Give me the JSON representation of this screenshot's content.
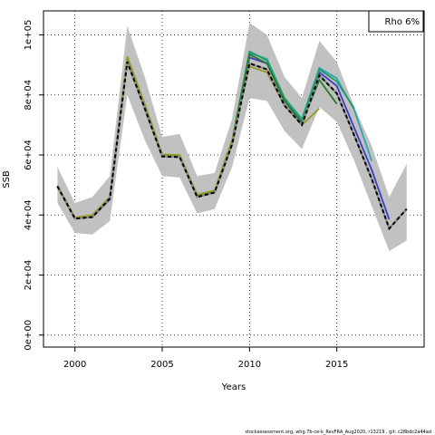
{
  "chart_data": {
    "type": "line",
    "xlabel": "Years",
    "ylabel": "SSB",
    "xlim": [
      1998.2,
      2020.0
    ],
    "ylim": [
      -4000,
      108000
    ],
    "x_ticks": [
      2000,
      2005,
      2010,
      2015
    ],
    "x_tick_labels": [
      "2000",
      "2005",
      "2010",
      "2015"
    ],
    "y_ticks": [
      0,
      20000,
      40000,
      60000,
      80000,
      100000
    ],
    "y_tick_labels": [
      "0e+00",
      "2e+04",
      "4e+04",
      "6e+04",
      "8e+04",
      "1e+05"
    ],
    "grid": true,
    "legend": {
      "position": "top-right",
      "text": "Rho 6%"
    },
    "footer": "stockassessment.org, whg.7b-ce-k_RevFRA_Aug2020, r13219 , git: c28bdc2a44ad",
    "colors": {
      "band": "#bebebe",
      "base": "#000000",
      "peel_blue": "#3c3cc8",
      "peel_teal": "#2aa6b4",
      "peel_green": "#1f9e63",
      "peel_olive": "#9a9a2a",
      "peel_darkgreen": "#2a7a2a"
    },
    "band": {
      "x": [
        1999,
        2000,
        2001,
        2002,
        2003,
        2004,
        2005,
        2006,
        2007,
        2008,
        2009,
        2010,
        2011,
        2012,
        2013,
        2014,
        2015,
        2016,
        2017,
        2018,
        2019
      ],
      "upper": [
        56000,
        44000,
        46000,
        53000,
        103000,
        86000,
        66000,
        67000,
        53000,
        54000,
        72000,
        104000,
        100000,
        86000,
        79000,
        98000,
        91000,
        76000,
        63000,
        46000,
        57000
      ],
      "lower": [
        44000,
        34000,
        33500,
        38000,
        80000,
        65000,
        53000,
        52500,
        40500,
        42000,
        56000,
        79000,
        78000,
        68000,
        62000,
        76000,
        71000,
        58000,
        43000,
        28000,
        31500
      ]
    },
    "series": [
      {
        "color_key": "base",
        "dashed": true,
        "x": [
          1999,
          2000,
          2001,
          2002,
          2003,
          2004,
          2005,
          2006,
          2007,
          2008,
          2009,
          2010,
          2011,
          2012,
          2013,
          2014,
          2015,
          2016,
          2017,
          2018,
          2019
        ],
        "values": [
          49500,
          38800,
          39300,
          45500,
          91000,
          75500,
          59500,
          59300,
          46000,
          47500,
          63500,
          90500,
          88500,
          76500,
          70000,
          86500,
          80500,
          66500,
          52000,
          35500,
          42000
        ]
      },
      {
        "color_key": "peel_blue",
        "dashed": false,
        "x": [
          1999,
          2000,
          2001,
          2002,
          2003,
          2004,
          2005,
          2006,
          2007,
          2008,
          2009,
          2010,
          2011,
          2012,
          2013,
          2014,
          2015,
          2016,
          2017,
          2018
        ],
        "values": [
          49500,
          38900,
          39300,
          45200,
          91500,
          75500,
          59500,
          59300,
          46000,
          47500,
          64000,
          92500,
          90500,
          78000,
          71000,
          87500,
          83000,
          69000,
          55000,
          38500
        ]
      },
      {
        "color_key": "peel_teal",
        "dashed": false,
        "x": [
          1999,
          2000,
          2001,
          2002,
          2003,
          2004,
          2005,
          2006,
          2007,
          2008,
          2009,
          2010,
          2011,
          2012,
          2013,
          2014,
          2015,
          2016,
          2017
        ],
        "values": [
          49700,
          39000,
          39700,
          45700,
          92500,
          76500,
          60000,
          59800,
          46500,
          48000,
          64500,
          94000,
          92000,
          79000,
          72000,
          89000,
          85500,
          75000,
          58000
        ]
      },
      {
        "color_key": "peel_green",
        "dashed": false,
        "x": [
          1999,
          2000,
          2001,
          2002,
          2003,
          2004,
          2005,
          2006,
          2007,
          2008,
          2009,
          2010,
          2011,
          2012,
          2013,
          2014,
          2015,
          2016
        ],
        "values": [
          49800,
          39100,
          39800,
          45800,
          92700,
          76800,
          60000,
          59800,
          46700,
          48000,
          64800,
          94500,
          91500,
          79000,
          71500,
          88500,
          84500,
          75500
        ]
      },
      {
        "color_key": "peel_darkgreen",
        "dashed": false,
        "x": [
          1999,
          2000,
          2001,
          2002,
          2003,
          2004,
          2005,
          2006,
          2007,
          2008,
          2009,
          2010,
          2011,
          2012,
          2013,
          2014,
          2015
        ],
        "values": [
          49700,
          39000,
          39600,
          45600,
          92300,
          76500,
          59800,
          59600,
          46400,
          47800,
          64500,
          93500,
          90500,
          78000,
          70500,
          85000,
          77000
        ]
      },
      {
        "color_key": "peel_olive",
        "dashed": false,
        "x": [
          1999,
          2000,
          2001,
          2002,
          2003,
          2004,
          2005,
          2006,
          2007,
          2008,
          2009,
          2010,
          2011,
          2012,
          2013,
          2014
        ],
        "values": [
          49900,
          39200,
          40000,
          46000,
          92800,
          77000,
          60200,
          60000,
          46800,
          48200,
          65000,
          89500,
          87500,
          76500,
          70000,
          75500
        ]
      }
    ]
  }
}
